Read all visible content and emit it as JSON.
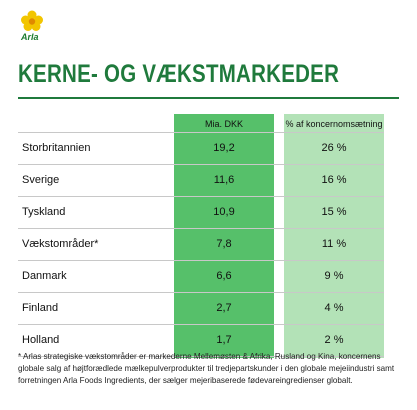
{
  "logo": {
    "text": "Arla"
  },
  "title": "KERNE- OG VÆKSTMARKEDER",
  "table": {
    "headers": {
      "col1": "Mia. DKK",
      "col2": "% af koncernomsætning"
    },
    "rows": [
      {
        "name": "Storbritannien",
        "value": "19,2",
        "share": "26 %"
      },
      {
        "name": "Sverige",
        "value": "11,6",
        "share": "16 %"
      },
      {
        "name": "Tyskland",
        "value": "10,9",
        "share": "15 %"
      },
      {
        "name": "Vækstområder*",
        "value": "7,8",
        "share": "11 %"
      },
      {
        "name": "Danmark",
        "value": "6,6",
        "share": "9 %"
      },
      {
        "name": "Finland",
        "value": "2,7",
        "share": "4 %"
      },
      {
        "name": "Holland",
        "value": "1,7",
        "share": "2 %"
      }
    ]
  },
  "footnote": "* Arlas strategiske vækstområder er markederne Mellemøsten & Afrika, Rusland og Kina, koncernens globale salg af højtforædlede mælkepulverprodukter til tredjepartskunder i den globale mejeiindustri samt forretningen Arla Foods Ingredients, der sælger mejeribaserede fødevareingredienser globalt.",
  "colors": {
    "brand_green": "#1f7a3c",
    "col1_bg": "#56c06a",
    "col2_bg": "#b3e2b7"
  }
}
